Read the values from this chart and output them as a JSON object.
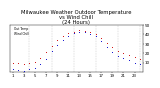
{
  "title": "Milwaukee Weather Outdoor Temperature\nvs Wind Chill\n(24 Hours)",
  "title_fontsize": 3.8,
  "background_color": "#ffffff",
  "plot_bg": "#ffffff",
  "temp_x": [
    1,
    2,
    3,
    4,
    5,
    6,
    7,
    8,
    9,
    10,
    11,
    12,
    13,
    14,
    15,
    16,
    17,
    18,
    19,
    20,
    21,
    22,
    23,
    24
  ],
  "temp_y": [
    10,
    9,
    8,
    10,
    11,
    15,
    21,
    28,
    34,
    38,
    41,
    43,
    45,
    44,
    42,
    40,
    36,
    31,
    26,
    22,
    20,
    18,
    16,
    14
  ],
  "wc_x": [
    1,
    2,
    3,
    4,
    5,
    6,
    7,
    8,
    9,
    10,
    11,
    12,
    13,
    14,
    15,
    16,
    17,
    18,
    19,
    20,
    21,
    22,
    23,
    24
  ],
  "wc_y": [
    3,
    2,
    1,
    3,
    4,
    8,
    14,
    22,
    29,
    34,
    38,
    41,
    43,
    42,
    40,
    38,
    33,
    27,
    21,
    17,
    15,
    13,
    10,
    8
  ],
  "temp_color": "#cc0000",
  "wc_color": "#0000cc",
  "dot_size": 1.8,
  "ylim": [
    0,
    50
  ],
  "yticks": [
    10,
    20,
    30,
    40,
    50
  ],
  "ytick_labels": [
    "10",
    "20",
    "30",
    "40",
    "50"
  ],
  "xlim": [
    0.5,
    24.5
  ],
  "xticks": [
    1,
    3,
    5,
    7,
    9,
    11,
    13,
    15,
    17,
    19,
    21,
    23
  ],
  "xtick_labels": [
    "1",
    "3",
    "5",
    "7",
    "9",
    "11",
    "13",
    "15",
    "17",
    "19",
    "21",
    "23"
  ],
  "grid_x": [
    4,
    8,
    12,
    16,
    20,
    24
  ],
  "legend_labels": [
    "Out Temp",
    "Wind Chill"
  ],
  "legend_colors": [
    "#cc0000",
    "#0000cc"
  ]
}
